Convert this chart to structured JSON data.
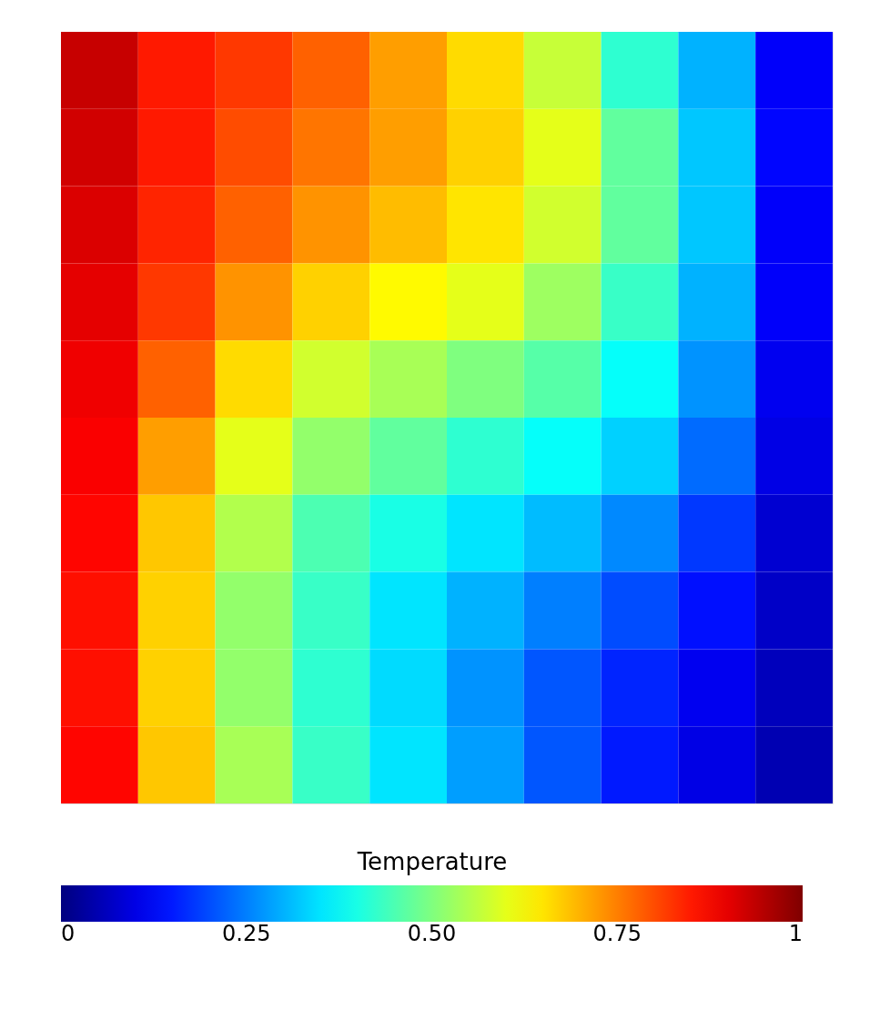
{
  "chart_data": {
    "type": "heatmap",
    "clabel": "Temperature",
    "categories": [
      null,
      null,
      null,
      null,
      null,
      null,
      null,
      null,
      null,
      null
    ],
    "y_categories": [
      null,
      null,
      null,
      null,
      null,
      null,
      null,
      null,
      null,
      null
    ],
    "cells": [
      [
        0.93,
        0.85,
        0.82,
        0.78,
        0.72,
        0.66,
        0.57,
        0.42,
        0.3,
        0.12
      ],
      [
        0.92,
        0.85,
        0.8,
        0.76,
        0.72,
        0.67,
        0.6,
        0.47,
        0.32,
        0.13
      ],
      [
        0.91,
        0.84,
        0.78,
        0.73,
        0.69,
        0.65,
        0.58,
        0.47,
        0.32,
        0.12
      ],
      [
        0.9,
        0.82,
        0.73,
        0.67,
        0.63,
        0.6,
        0.53,
        0.43,
        0.3,
        0.12
      ],
      [
        0.89,
        0.78,
        0.66,
        0.58,
        0.54,
        0.5,
        0.46,
        0.38,
        0.27,
        0.11
      ],
      [
        0.88,
        0.72,
        0.6,
        0.52,
        0.47,
        0.42,
        0.38,
        0.33,
        0.23,
        0.1
      ],
      [
        0.87,
        0.68,
        0.55,
        0.45,
        0.4,
        0.35,
        0.31,
        0.26,
        0.18,
        0.08
      ],
      [
        0.86,
        0.67,
        0.52,
        0.43,
        0.35,
        0.3,
        0.25,
        0.2,
        0.14,
        0.07
      ],
      [
        0.86,
        0.67,
        0.52,
        0.42,
        0.34,
        0.27,
        0.21,
        0.16,
        0.11,
        0.06
      ],
      [
        0.87,
        0.68,
        0.54,
        0.43,
        0.35,
        0.28,
        0.21,
        0.15,
        0.1,
        0.05
      ]
    ],
    "clim": [
      0,
      1
    ],
    "cticks": [
      0,
      0.25,
      {
        "value": 0.5,
        "label": "0.50"
      },
      0.75,
      1
    ],
    "tick_labels": false
  }
}
